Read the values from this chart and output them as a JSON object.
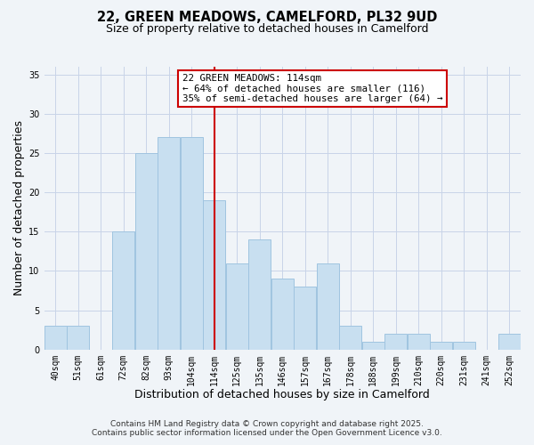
{
  "title": "22, GREEN MEADOWS, CAMELFORD, PL32 9UD",
  "subtitle": "Size of property relative to detached houses in Camelford",
  "xlabel": "Distribution of detached houses by size in Camelford",
  "ylabel": "Number of detached properties",
  "footer_lines": [
    "Contains HM Land Registry data © Crown copyright and database right 2025.",
    "Contains public sector information licensed under the Open Government Licence v3.0."
  ],
  "categories": [
    "40sqm",
    "51sqm",
    "61sqm",
    "72sqm",
    "82sqm",
    "93sqm",
    "104sqm",
    "114sqm",
    "125sqm",
    "135sqm",
    "146sqm",
    "157sqm",
    "167sqm",
    "178sqm",
    "188sqm",
    "199sqm",
    "210sqm",
    "220sqm",
    "231sqm",
    "241sqm",
    "252sqm"
  ],
  "values": [
    3,
    3,
    0,
    15,
    25,
    27,
    27,
    19,
    11,
    14,
    9,
    8,
    11,
    3,
    1,
    2,
    2,
    1,
    1,
    0,
    2
  ],
  "bar_color": "#c8dff0",
  "bar_edge_color": "#a0c4e0",
  "vline_x_index": 7,
  "vline_color": "#cc0000",
  "annotation_line1": "22 GREEN MEADOWS: 114sqm",
  "annotation_line2": "← 64% of detached houses are smaller (116)",
  "annotation_line3": "35% of semi-detached houses are larger (64) →",
  "ylim": [
    0,
    36
  ],
  "yticks": [
    0,
    5,
    10,
    15,
    20,
    25,
    30,
    35
  ],
  "background_color": "#f0f4f8",
  "grid_color": "#c8d4e8",
  "title_fontsize": 10.5,
  "subtitle_fontsize": 9,
  "label_fontsize": 9,
  "tick_fontsize": 7,
  "footer_fontsize": 6.5,
  "annotation_fontsize": 7.8
}
